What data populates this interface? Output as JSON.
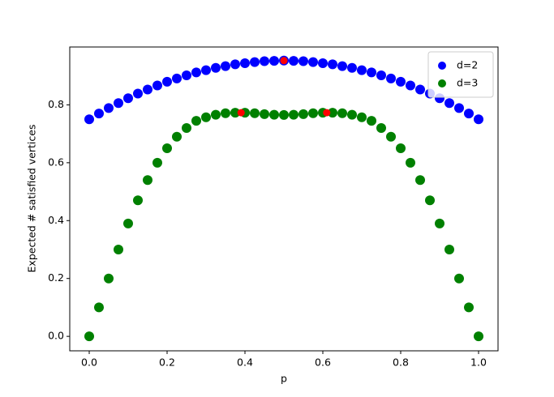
{
  "chart_data": {
    "type": "scatter",
    "xlabel": "p",
    "ylabel": "Expected # satisfied vertices",
    "x": [
      0,
      0.025,
      0.05,
      0.075,
      0.1,
      0.125,
      0.15,
      0.175,
      0.2,
      0.225,
      0.25,
      0.275,
      0.3,
      0.325,
      0.35,
      0.375,
      0.4,
      0.425,
      0.45,
      0.475,
      0.5,
      0.525,
      0.55,
      0.575,
      0.6,
      0.625,
      0.65,
      0.675,
      0.7,
      0.725,
      0.75,
      0.775,
      0.8,
      0.825,
      0.85,
      0.875,
      0.9,
      0.925,
      0.95,
      0.975,
      1
    ],
    "series": [
      {
        "name": "d=2",
        "color": "#0000ff",
        "values": [
          0.75,
          0.77,
          0.789,
          0.806,
          0.823,
          0.839,
          0.853,
          0.867,
          0.88,
          0.891,
          0.902,
          0.912,
          0.92,
          0.928,
          0.934,
          0.94,
          0.944,
          0.948,
          0.951,
          0.952,
          0.953,
          0.952,
          0.951,
          0.948,
          0.944,
          0.94,
          0.934,
          0.928,
          0.92,
          0.912,
          0.902,
          0.891,
          0.88,
          0.867,
          0.853,
          0.839,
          0.823,
          0.806,
          0.789,
          0.77,
          0.75
        ]
      },
      {
        "name": "d=3",
        "color": "#008000",
        "values": [
          0,
          0.1,
          0.2,
          0.3,
          0.39,
          0.47,
          0.54,
          0.6,
          0.65,
          0.69,
          0.72,
          0.745,
          0.757,
          0.766,
          0.771,
          0.773,
          0.773,
          0.771,
          0.768,
          0.766,
          0.765,
          0.766,
          0.768,
          0.771,
          0.773,
          0.773,
          0.771,
          0.766,
          0.757,
          0.745,
          0.72,
          0.69,
          0.65,
          0.6,
          0.54,
          0.47,
          0.39,
          0.3,
          0.2,
          0.1,
          0
        ]
      }
    ],
    "highlight_points": {
      "color": "#ff0000",
      "x": [
        0.39,
        0.5,
        0.61
      ],
      "values": [
        0.773,
        0.953,
        0.773
      ]
    },
    "xlim": [
      -0.05,
      1.05
    ],
    "ylim": [
      -0.05,
      1.0
    ],
    "xticks": [
      {
        "value": 0,
        "label": "0.0"
      },
      0.2,
      0.4,
      0.6,
      0.8,
      {
        "value": 1,
        "label": "1.0"
      }
    ],
    "yticks": [
      {
        "value": 0,
        "label": "0.0"
      },
      0.2,
      0.4,
      0.6,
      0.8
    ],
    "legend": "upper right"
  }
}
